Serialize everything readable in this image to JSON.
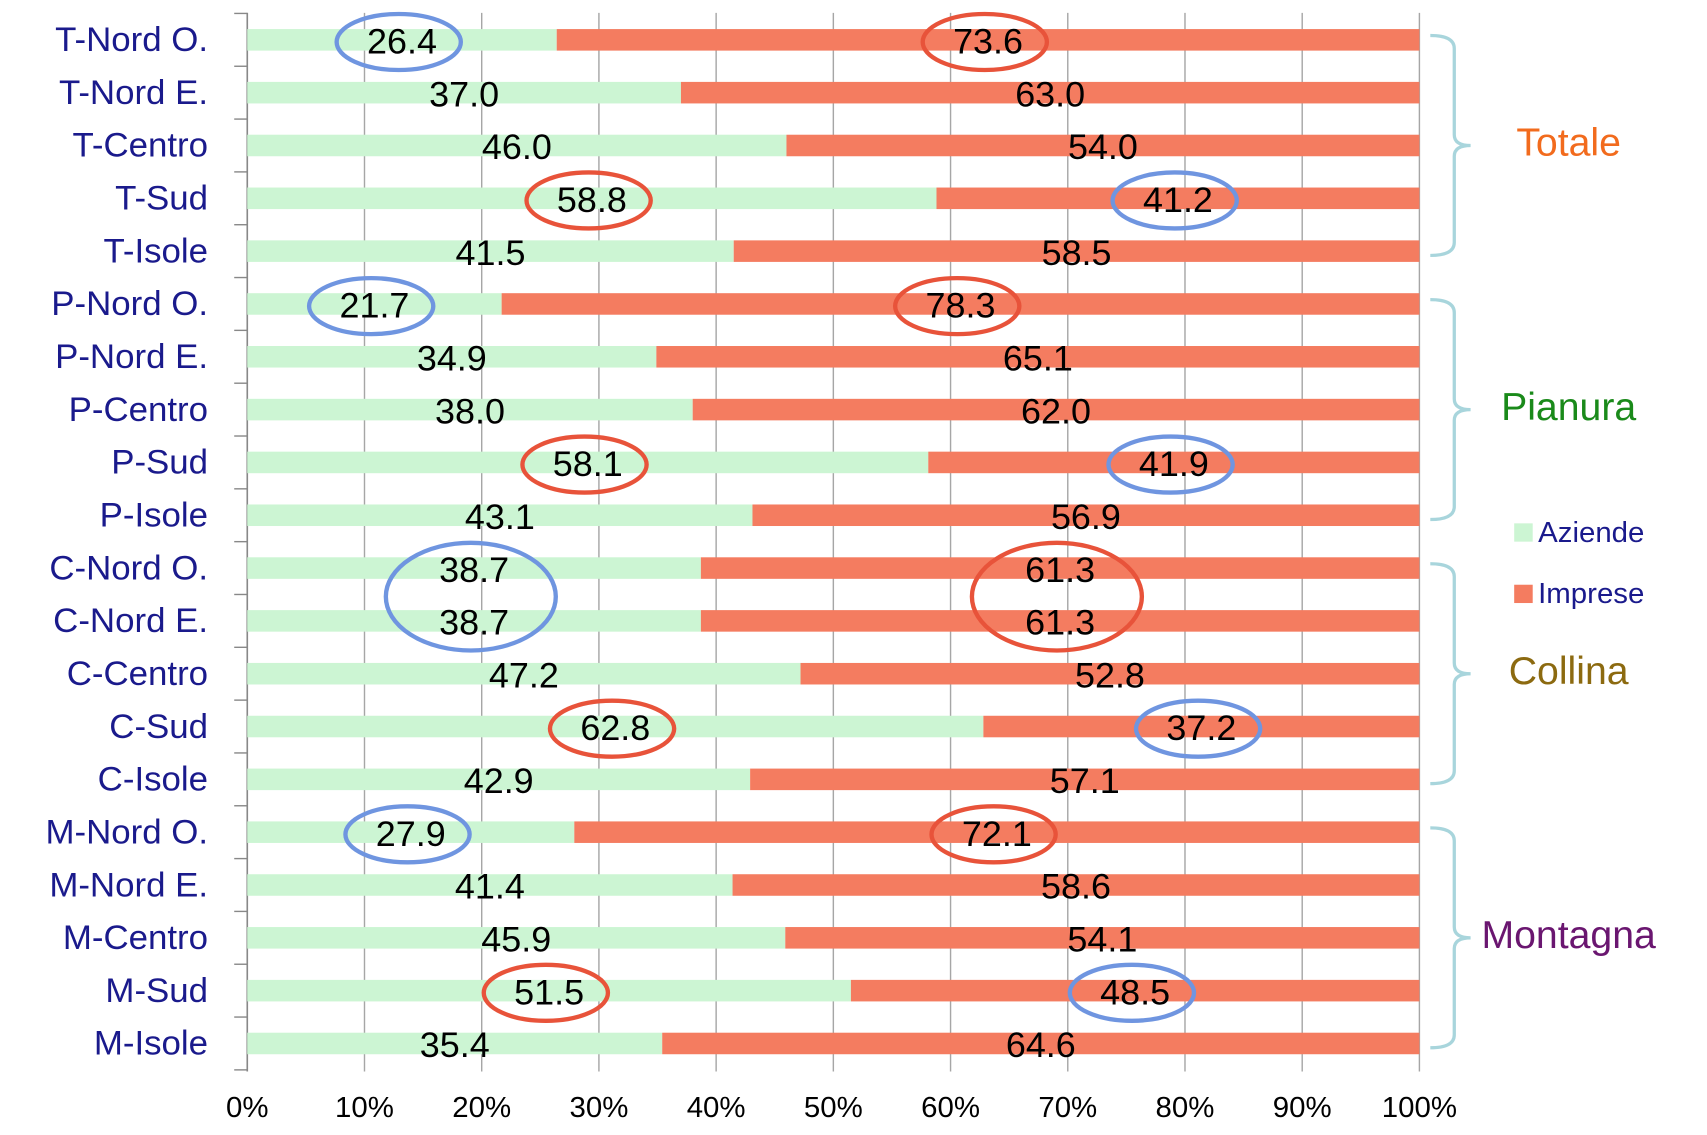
{
  "chart_data": {
    "type": "stacked_bar_horizontal",
    "categories": [
      "T-Nord O.",
      "T-Nord E.",
      "T-Centro",
      "T-Sud",
      "T-Isole",
      "P-Nord O.",
      "P-Nord E.",
      "P-Centro",
      "P-Sud",
      "P-Isole",
      "C-Nord O.",
      "C-Nord E.",
      "C-Centro",
      "C-Sud",
      "C-Isole",
      "M-Nord O.",
      "M-Nord E.",
      "M-Centro",
      "M-Sud",
      "M-Isole"
    ],
    "series": [
      {
        "name": "Aziende",
        "color": "#ccf5d3",
        "values": [
          26.4,
          37,
          46,
          58.8,
          41.5,
          21.7,
          34.9,
          38,
          58.1,
          43.1,
          38.7,
          38.7,
          47.2,
          62.8,
          42.9,
          27.9,
          41.4,
          45.9,
          51.5,
          35.4
        ],
        "value_labels": [
          "26.4",
          "37.0",
          "46.0",
          "58.8",
          "41.5",
          "21.7",
          "34.9",
          "38.0",
          "58.1",
          "43.1",
          "38.7",
          "38.7",
          "47.2",
          "62.8",
          "42.9",
          "27.9",
          "41.4",
          "45.9",
          "51.5",
          "35.4"
        ]
      },
      {
        "name": "Imprese",
        "color": "#f47c60",
        "values": [
          73.6,
          63,
          54,
          41.2,
          58.5,
          78.3,
          65.1,
          62,
          41.9,
          56.9,
          61.3,
          61.3,
          52.8,
          37.2,
          57.1,
          72.1,
          58.6,
          54.1,
          48.5,
          64.6
        ],
        "value_labels": [
          "73.6",
          "63.0",
          "54.0",
          "41.2",
          "58.5",
          "78.3",
          "65.1",
          "62.0",
          "41.9",
          "56.9",
          "61.3",
          "61.3",
          "52.8",
          "37.2",
          "57.1",
          "72.1",
          "58.6",
          "54.1",
          "48.5",
          "64.6"
        ]
      }
    ],
    "xlim": [
      0,
      100
    ],
    "xticks": [
      {
        "value": 0,
        "label": "0%"
      },
      {
        "value": 10,
        "label": "10%"
      },
      {
        "value": 20,
        "label": "20%"
      },
      {
        "value": 30,
        "label": "30%"
      },
      {
        "value": 40,
        "label": "40%"
      },
      {
        "value": 50,
        "label": "50%"
      },
      {
        "value": 60,
        "label": "60%"
      },
      {
        "value": 70,
        "label": "70%"
      },
      {
        "value": 80,
        "label": "80%"
      },
      {
        "value": 90,
        "label": "90%"
      },
      {
        "value": 100,
        "label": "100%"
      }
    ],
    "grid": true,
    "legend": "right",
    "groups": [
      {
        "name": "Totale",
        "color": "#f26b1d"
      },
      {
        "name": "Pianura",
        "color": "#1a8a1a"
      },
      {
        "name": "Collina",
        "color": "#8c6a10"
      },
      {
        "name": "Montagna",
        "color": "#6a1670"
      }
    ]
  }
}
